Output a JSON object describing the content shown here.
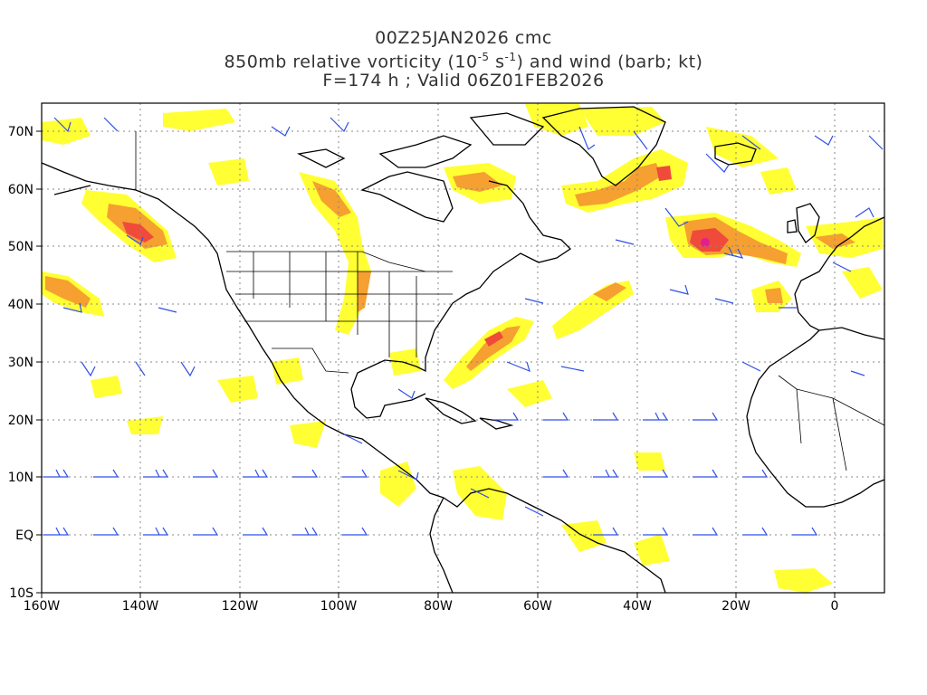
{
  "title": {
    "line1": "00Z25JAN2026 cmc",
    "line2_pre": "850mb relative vorticity (10",
    "line2_exp1": "-5",
    "line2_mid": " s",
    "line2_exp2": "-1",
    "line2_post": ") and wind (barb; kt)",
    "line3": "F=174 h ; Valid 06Z01FEB2026"
  },
  "axes": {
    "lon_ticks": [
      "160W",
      "140W",
      "120W",
      "100W",
      "80W",
      "60W",
      "40W",
      "20W",
      "0"
    ],
    "lat_ticks": [
      "70N",
      "60N",
      "50N",
      "40N",
      "30N",
      "20N",
      "10N",
      "EQ",
      "10S"
    ]
  },
  "colors": {
    "shade_light": "#ffff33",
    "shade_mid": "#f7e56b",
    "shade_orange": "#f5a030",
    "shade_red": "#f04a3a",
    "shade_magenta": "#e0208f",
    "barb": "#3050e6",
    "coast": "#000000",
    "grid": "#888888"
  },
  "map": {
    "lon_range": [
      -160,
      10
    ],
    "lat_range": [
      -10,
      75
    ],
    "grid": true
  }
}
